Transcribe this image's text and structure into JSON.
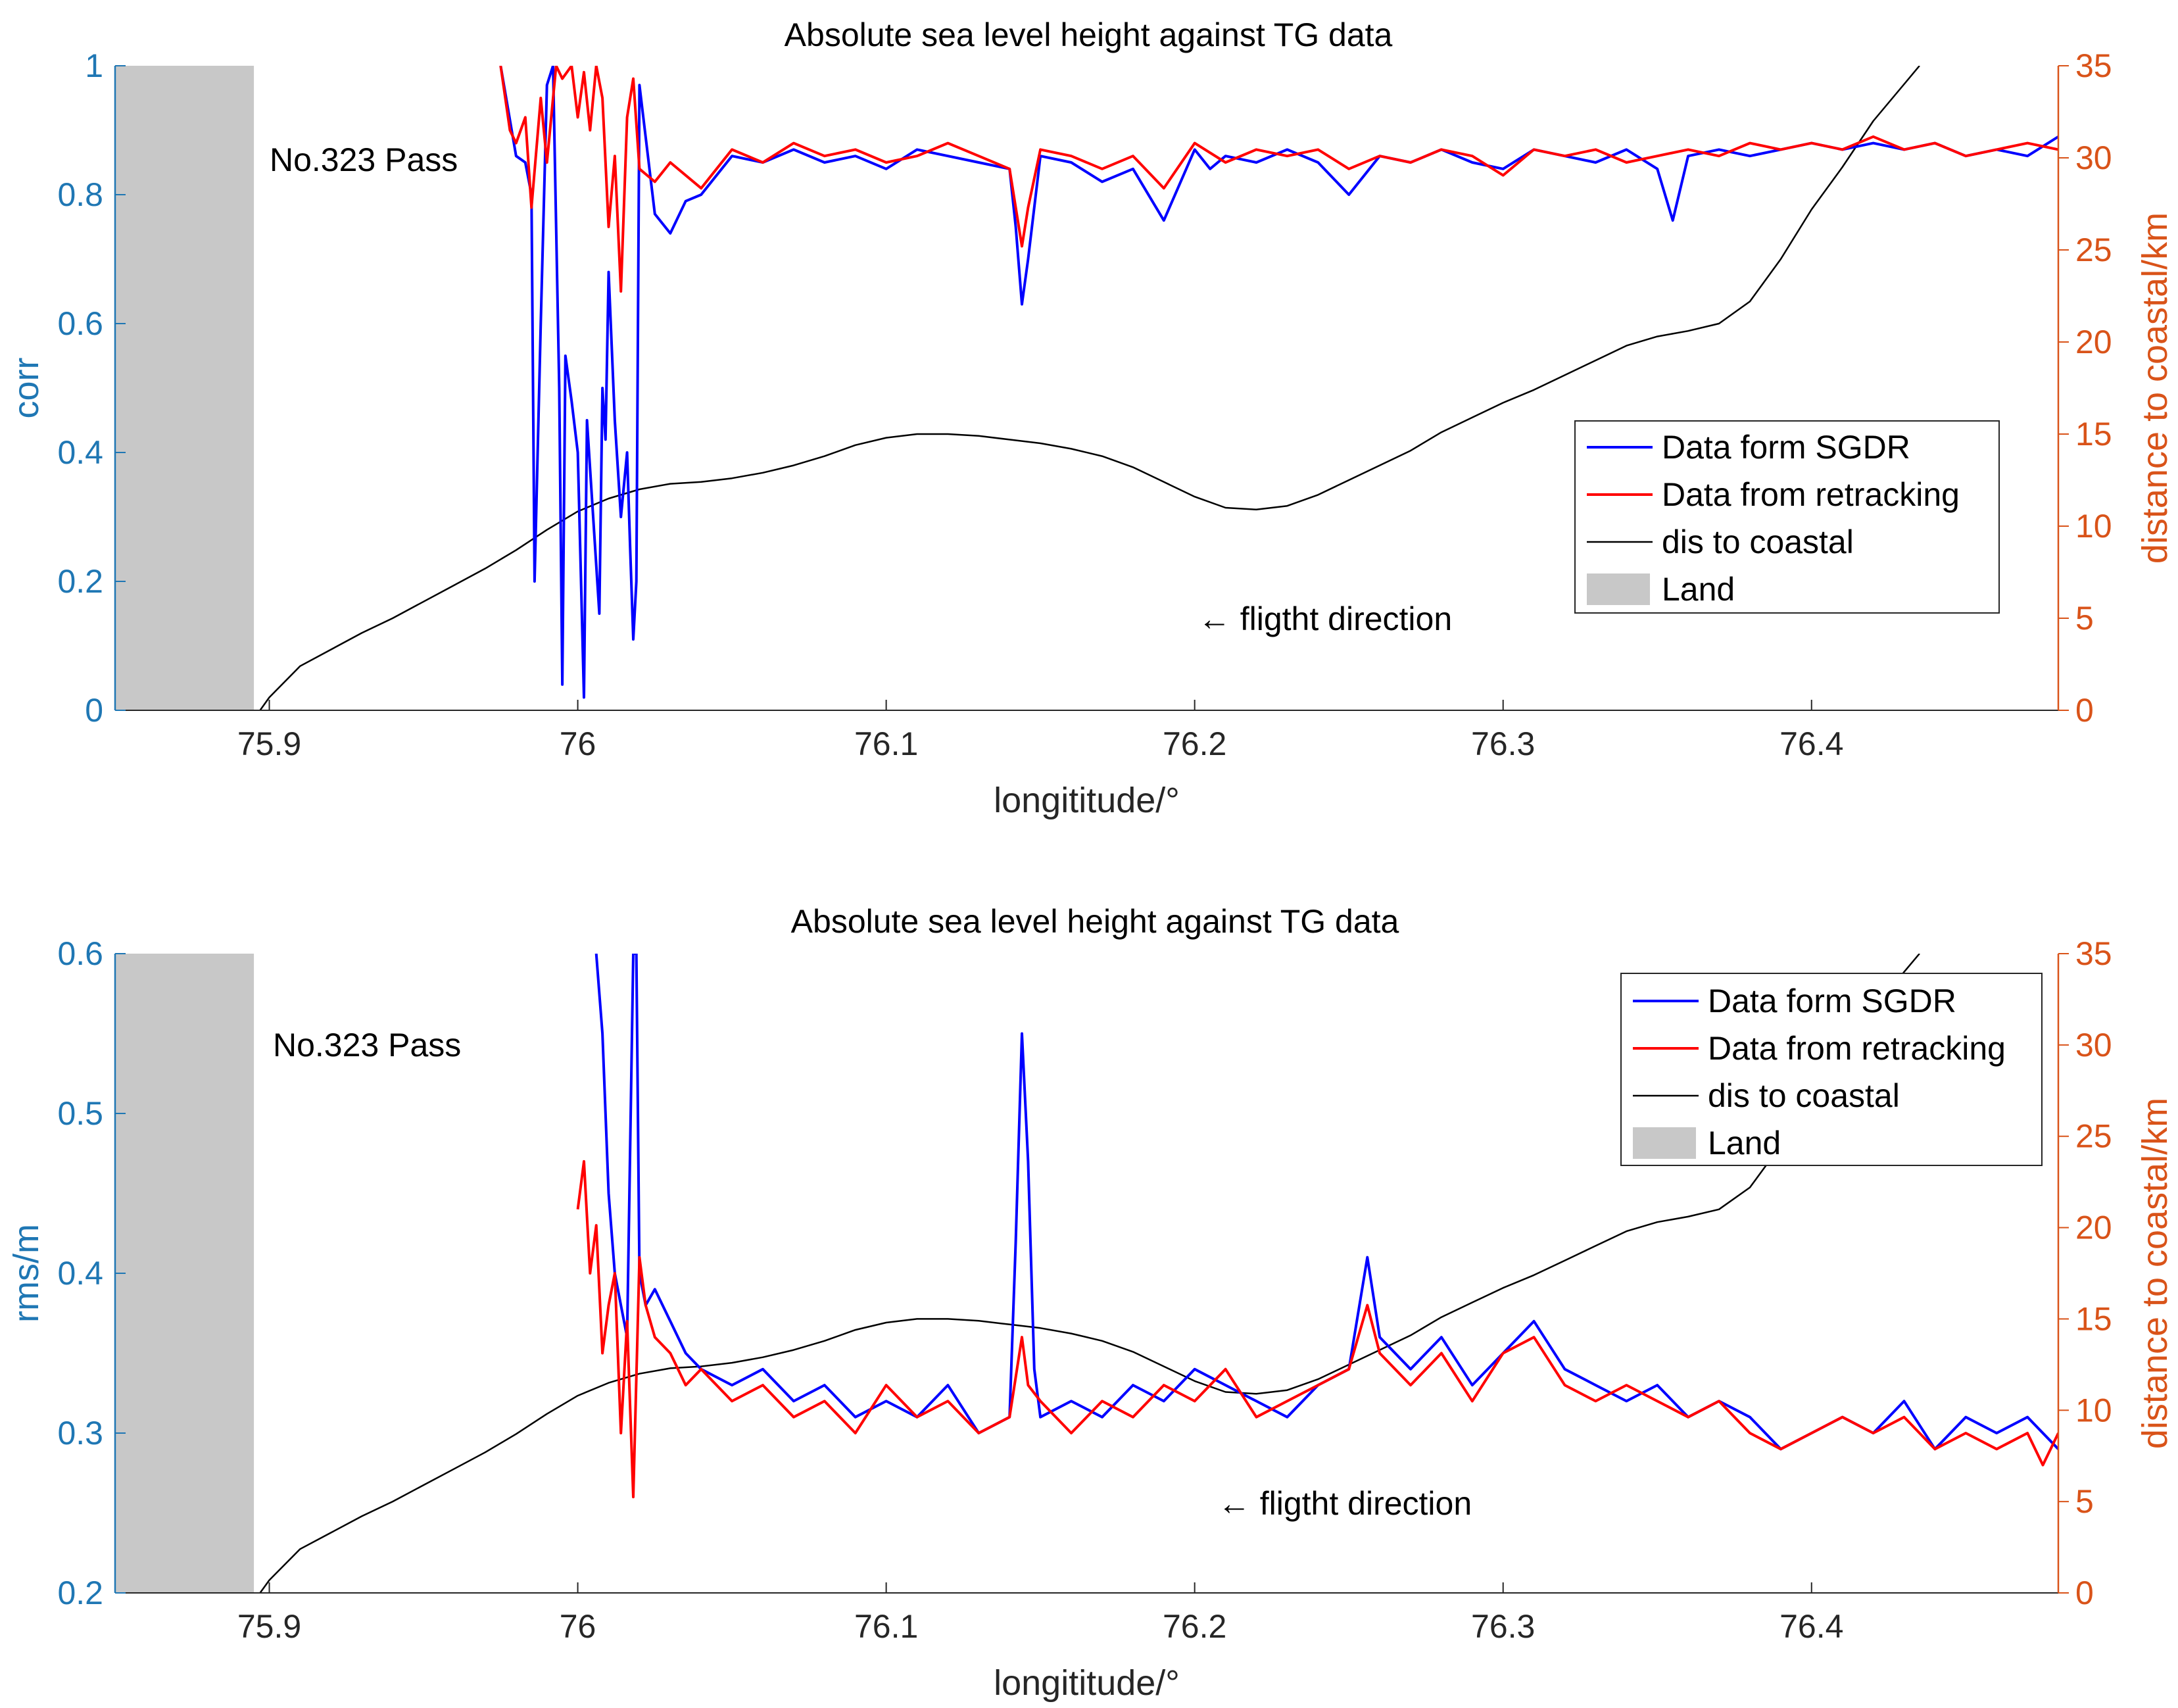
{
  "colors": {
    "left_axis": "#1f77b4",
    "right_axis": "#d95319",
    "sgdr": "#0000ff",
    "retracking": "#ff0000",
    "distance": "#000000",
    "land": "#c8c8c8",
    "axis_dark": "#262626"
  },
  "chart_data": [
    {
      "type": "line",
      "title": "Absolute sea level height against TG data",
      "xlabel": "longititude/°",
      "ylabel": "corr",
      "ylabel_right": "distance to coastal/km",
      "xlim": [
        75.85,
        76.48
      ],
      "ylim": [
        0,
        1
      ],
      "ylim_right": [
        0,
        35
      ],
      "xticks": [
        75.9,
        76.0,
        76.1,
        76.2,
        76.3,
        76.4
      ],
      "xtick_labels": [
        "75.9",
        "76",
        "76.1",
        "76.2",
        "76.3",
        "76.4"
      ],
      "yticks": [
        0,
        0.2,
        0.4,
        0.6,
        0.8,
        1
      ],
      "ytick_labels": [
        "0",
        "0.2",
        "0.4",
        "0.6",
        "0.8",
        "1"
      ],
      "yticks_right": [
        0,
        5,
        10,
        15,
        20,
        25,
        30,
        35
      ],
      "ytick_labels_right": [
        "0",
        "5",
        "10",
        "15",
        "20",
        "25",
        "30",
        "35"
      ],
      "annotations": {
        "pass_label": "No.323 Pass",
        "direction": "← fligtht direction"
      },
      "land_region": {
        "xmin": 75.85,
        "xmax": 75.895
      },
      "legend": [
        "Data form SGDR",
        "Data from retracking",
        "dis to coastal",
        "Land"
      ],
      "legend_loc": "east",
      "series": [
        {
          "name": "Data form SGDR",
          "axis": "left",
          "color": "#0000ff",
          "x": [
            75.975,
            75.98,
            75.983,
            75.985,
            75.986,
            75.988,
            75.99,
            75.992,
            75.994,
            75.995,
            75.996,
            75.998,
            76.0,
            76.002,
            76.003,
            76.005,
            76.007,
            76.008,
            76.009,
            76.01,
            76.012,
            76.014,
            76.016,
            76.017,
            76.018,
            76.019,
            76.02,
            76.025,
            76.03,
            76.035,
            76.04,
            76.05,
            76.06,
            76.07,
            76.08,
            76.09,
            76.1,
            76.11,
            76.12,
            76.13,
            76.14,
            76.142,
            76.144,
            76.146,
            76.15,
            76.16,
            76.17,
            76.18,
            76.19,
            76.2,
            76.205,
            76.21,
            76.22,
            76.23,
            76.24,
            76.25,
            76.26,
            76.27,
            76.28,
            76.29,
            76.3,
            76.31,
            76.32,
            76.33,
            76.34,
            76.35,
            76.355,
            76.36,
            76.37,
            76.38,
            76.39,
            76.4,
            76.41,
            76.42,
            76.43,
            76.44,
            76.45,
            76.46,
            76.47,
            76.48
          ],
          "y": [
            1.0,
            0.86,
            0.85,
            0.8,
            0.2,
            0.6,
            0.97,
            1.0,
            0.5,
            0.04,
            0.55,
            0.48,
            0.4,
            0.02,
            0.45,
            0.3,
            0.15,
            0.5,
            0.42,
            0.68,
            0.45,
            0.3,
            0.4,
            0.25,
            0.11,
            0.2,
            0.97,
            0.77,
            0.74,
            0.79,
            0.8,
            0.86,
            0.85,
            0.87,
            0.85,
            0.86,
            0.84,
            0.87,
            0.86,
            0.85,
            0.84,
            0.75,
            0.63,
            0.7,
            0.86,
            0.85,
            0.82,
            0.84,
            0.76,
            0.87,
            0.84,
            0.86,
            0.85,
            0.87,
            0.85,
            0.8,
            0.86,
            0.85,
            0.87,
            0.85,
            0.84,
            0.87,
            0.86,
            0.85,
            0.87,
            0.84,
            0.76,
            0.86,
            0.87,
            0.86,
            0.87,
            0.88,
            0.87,
            0.88,
            0.87,
            0.88,
            0.86,
            0.87,
            0.86,
            0.89
          ]
        },
        {
          "name": "Data from retracking",
          "axis": "left",
          "color": "#ff0000",
          "x": [
            75.975,
            75.978,
            75.98,
            75.983,
            75.985,
            75.988,
            75.99,
            75.993,
            75.995,
            75.998,
            76.0,
            76.002,
            76.004,
            76.006,
            76.008,
            76.01,
            76.012,
            76.014,
            76.016,
            76.018,
            76.02,
            76.025,
            76.03,
            76.04,
            76.05,
            76.06,
            76.07,
            76.08,
            76.09,
            76.1,
            76.11,
            76.12,
            76.13,
            76.14,
            76.144,
            76.146,
            76.15,
            76.16,
            76.17,
            76.18,
            76.19,
            76.2,
            76.21,
            76.22,
            76.23,
            76.24,
            76.25,
            76.26,
            76.27,
            76.28,
            76.29,
            76.3,
            76.31,
            76.32,
            76.33,
            76.34,
            76.35,
            76.36,
            76.37,
            76.38,
            76.39,
            76.4,
            76.41,
            76.42,
            76.43,
            76.44,
            76.45,
            76.46,
            76.47,
            76.48
          ],
          "y": [
            1.0,
            0.9,
            0.88,
            0.92,
            0.78,
            0.95,
            0.85,
            1.0,
            0.98,
            1.0,
            0.92,
            0.99,
            0.9,
            1.0,
            0.95,
            0.75,
            0.86,
            0.65,
            0.92,
            0.98,
            0.84,
            0.82,
            0.85,
            0.81,
            0.87,
            0.85,
            0.88,
            0.86,
            0.87,
            0.85,
            0.86,
            0.88,
            0.86,
            0.84,
            0.72,
            0.78,
            0.87,
            0.86,
            0.84,
            0.86,
            0.81,
            0.88,
            0.85,
            0.87,
            0.86,
            0.87,
            0.84,
            0.86,
            0.85,
            0.87,
            0.86,
            0.83,
            0.87,
            0.86,
            0.87,
            0.85,
            0.86,
            0.87,
            0.86,
            0.88,
            0.87,
            0.88,
            0.87,
            0.89,
            0.87,
            0.88,
            0.86,
            0.87,
            0.88,
            0.87
          ]
        },
        {
          "name": "dis to coastal",
          "axis": "right",
          "color": "#000000",
          "x": [
            75.897,
            75.9,
            75.91,
            75.92,
            75.93,
            75.94,
            75.95,
            75.96,
            75.97,
            75.98,
            75.99,
            76.0,
            76.01,
            76.02,
            76.03,
            76.04,
            76.05,
            76.06,
            76.07,
            76.08,
            76.09,
            76.1,
            76.11,
            76.12,
            76.13,
            76.14,
            76.15,
            76.16,
            76.17,
            76.18,
            76.19,
            76.2,
            76.21,
            76.22,
            76.23,
            76.24,
            76.25,
            76.26,
            76.27,
            76.28,
            76.29,
            76.3,
            76.31,
            76.32,
            76.33,
            76.34,
            76.35,
            76.36,
            76.37,
            76.38,
            76.39,
            76.4,
            76.41,
            76.42,
            76.43,
            76.435
          ],
          "y": [
            0,
            0.7,
            2.4,
            3.3,
            4.2,
            5.0,
            5.9,
            6.8,
            7.7,
            8.7,
            9.8,
            10.8,
            11.5,
            12.0,
            12.3,
            12.4,
            12.6,
            12.9,
            13.3,
            13.8,
            14.4,
            14.8,
            15.0,
            15.0,
            14.9,
            14.7,
            14.5,
            14.2,
            13.8,
            13.2,
            12.4,
            11.6,
            11.0,
            10.9,
            11.1,
            11.7,
            12.5,
            13.3,
            14.1,
            15.1,
            15.9,
            16.7,
            17.4,
            18.2,
            19.0,
            19.8,
            20.3,
            20.6,
            21.0,
            22.2,
            24.5,
            27.2,
            29.5,
            32.0,
            34.0,
            35.0
          ]
        }
      ]
    },
    {
      "type": "line",
      "title": "Absolute sea level height against TG data",
      "xlabel": "longititude/°",
      "ylabel": "rms/m",
      "ylabel_right": "distance to coastal/km",
      "xlim": [
        75.85,
        76.48
      ],
      "ylim": [
        0.2,
        0.6
      ],
      "ylim_right": [
        0,
        35
      ],
      "xticks": [
        75.9,
        76.0,
        76.1,
        76.2,
        76.3,
        76.4
      ],
      "xtick_labels": [
        "75.9",
        "76",
        "76.1",
        "76.2",
        "76.3",
        "76.4"
      ],
      "yticks": [
        0.2,
        0.3,
        0.4,
        0.5,
        0.6
      ],
      "ytick_labels": [
        "0.2",
        "0.3",
        "0.4",
        "0.5",
        "0.6"
      ],
      "yticks_right": [
        0,
        5,
        10,
        15,
        20,
        25,
        30,
        35
      ],
      "ytick_labels_right": [
        "0",
        "5",
        "10",
        "15",
        "20",
        "25",
        "30",
        "35"
      ],
      "annotations": {
        "pass_label": "No.323 Pass",
        "direction": "← fligtht direction"
      },
      "land_region": {
        "xmin": 75.85,
        "xmax": 75.895
      },
      "legend": [
        "Data form SGDR",
        "Data from retracking",
        "dis to coastal",
        "Land"
      ],
      "legend_loc": "northeast",
      "series": [
        {
          "name": "Data form SGDR",
          "axis": "left",
          "color": "#0000ff",
          "x": [
            76.006,
            76.008,
            76.01,
            76.012,
            76.014,
            76.016,
            76.018,
            76.019,
            76.02,
            76.022,
            76.025,
            76.03,
            76.035,
            76.04,
            76.05,
            76.06,
            76.07,
            76.08,
            76.09,
            76.1,
            76.11,
            76.12,
            76.13,
            76.14,
            76.142,
            76.144,
            76.146,
            76.148,
            76.15,
            76.16,
            76.17,
            76.18,
            76.19,
            76.2,
            76.21,
            76.22,
            76.23,
            76.24,
            76.25,
            76.256,
            76.26,
            76.27,
            76.28,
            76.29,
            76.3,
            76.31,
            76.32,
            76.33,
            76.34,
            76.35,
            76.36,
            76.37,
            76.38,
            76.39,
            76.4,
            76.41,
            76.42,
            76.43,
            76.44,
            76.45,
            76.46,
            76.47,
            76.48
          ],
          "y": [
            0.6,
            0.55,
            0.45,
            0.4,
            0.38,
            0.36,
            0.6,
            0.6,
            0.4,
            0.38,
            0.39,
            0.37,
            0.35,
            0.34,
            0.33,
            0.34,
            0.32,
            0.33,
            0.31,
            0.32,
            0.31,
            0.33,
            0.3,
            0.31,
            0.42,
            0.55,
            0.47,
            0.34,
            0.31,
            0.32,
            0.31,
            0.33,
            0.32,
            0.34,
            0.33,
            0.32,
            0.31,
            0.33,
            0.34,
            0.41,
            0.36,
            0.34,
            0.36,
            0.33,
            0.35,
            0.37,
            0.34,
            0.33,
            0.32,
            0.33,
            0.31,
            0.32,
            0.31,
            0.29,
            0.3,
            0.31,
            0.3,
            0.32,
            0.29,
            0.31,
            0.3,
            0.31,
            0.29
          ]
        },
        {
          "name": "Data from retracking",
          "axis": "left",
          "color": "#ff0000",
          "x": [
            76.0,
            76.002,
            76.004,
            76.006,
            76.008,
            76.01,
            76.012,
            76.014,
            76.016,
            76.018,
            76.02,
            76.022,
            76.025,
            76.03,
            76.035,
            76.04,
            76.05,
            76.06,
            76.07,
            76.08,
            76.09,
            76.1,
            76.11,
            76.12,
            76.13,
            76.14,
            76.144,
            76.146,
            76.15,
            76.16,
            76.17,
            76.18,
            76.19,
            76.2,
            76.21,
            76.22,
            76.23,
            76.24,
            76.25,
            76.256,
            76.26,
            76.27,
            76.28,
            76.29,
            76.3,
            76.31,
            76.32,
            76.33,
            76.34,
            76.35,
            76.36,
            76.37,
            76.38,
            76.39,
            76.4,
            76.41,
            76.42,
            76.43,
            76.44,
            76.45,
            76.46,
            76.47,
            76.475,
            76.48
          ],
          "y": [
            0.44,
            0.47,
            0.4,
            0.43,
            0.35,
            0.38,
            0.4,
            0.3,
            0.37,
            0.26,
            0.41,
            0.38,
            0.36,
            0.35,
            0.33,
            0.34,
            0.32,
            0.33,
            0.31,
            0.32,
            0.3,
            0.33,
            0.31,
            0.32,
            0.3,
            0.31,
            0.36,
            0.33,
            0.32,
            0.3,
            0.32,
            0.31,
            0.33,
            0.32,
            0.34,
            0.31,
            0.32,
            0.33,
            0.34,
            0.38,
            0.35,
            0.33,
            0.35,
            0.32,
            0.35,
            0.36,
            0.33,
            0.32,
            0.33,
            0.32,
            0.31,
            0.32,
            0.3,
            0.29,
            0.3,
            0.31,
            0.3,
            0.31,
            0.29,
            0.3,
            0.29,
            0.3,
            0.28,
            0.3
          ]
        },
        {
          "name": "dis to coastal",
          "axis": "right",
          "color": "#000000",
          "x": [
            75.897,
            75.9,
            75.91,
            75.92,
            75.93,
            75.94,
            75.95,
            75.96,
            75.97,
            75.98,
            75.99,
            76.0,
            76.01,
            76.02,
            76.03,
            76.04,
            76.05,
            76.06,
            76.07,
            76.08,
            76.09,
            76.1,
            76.11,
            76.12,
            76.13,
            76.14,
            76.15,
            76.16,
            76.17,
            76.18,
            76.19,
            76.2,
            76.21,
            76.22,
            76.23,
            76.24,
            76.25,
            76.26,
            76.27,
            76.28,
            76.29,
            76.3,
            76.31,
            76.32,
            76.33,
            76.34,
            76.35,
            76.36,
            76.37,
            76.38,
            76.39,
            76.4,
            76.41,
            76.42,
            76.43,
            76.435
          ],
          "y": [
            0,
            0.7,
            2.4,
            3.3,
            4.2,
            5.0,
            5.9,
            6.8,
            7.7,
            8.7,
            9.8,
            10.8,
            11.5,
            12.0,
            12.3,
            12.4,
            12.6,
            12.9,
            13.3,
            13.8,
            14.4,
            14.8,
            15.0,
            15.0,
            14.9,
            14.7,
            14.5,
            14.2,
            13.8,
            13.2,
            12.4,
            11.6,
            11.0,
            10.9,
            11.1,
            11.7,
            12.5,
            13.3,
            14.1,
            15.1,
            15.9,
            16.7,
            17.4,
            18.2,
            19.0,
            19.8,
            20.3,
            20.6,
            21.0,
            22.2,
            24.5,
            27.2,
            29.5,
            32.0,
            34.0,
            35.0
          ]
        }
      ]
    }
  ]
}
